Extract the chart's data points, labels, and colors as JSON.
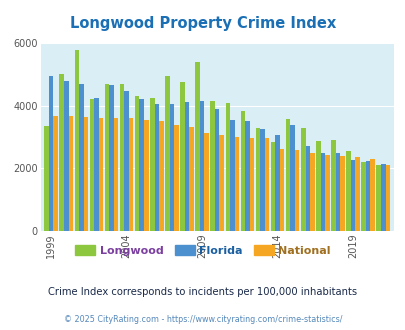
{
  "title": "Longwood Property Crime Index",
  "years": [
    1999,
    2000,
    2001,
    2002,
    2003,
    2004,
    2005,
    2006,
    2007,
    2008,
    2009,
    2010,
    2011,
    2012,
    2013,
    2014,
    2015,
    2016,
    2017,
    2018,
    2019,
    2020,
    2021
  ],
  "longwood": [
    3350,
    5000,
    5780,
    4200,
    4700,
    4700,
    4300,
    4250,
    4950,
    4750,
    5380,
    4150,
    4070,
    3820,
    3280,
    2850,
    3560,
    3270,
    2870,
    2900,
    2550,
    2200,
    2100
  ],
  "florida": [
    4950,
    4800,
    4700,
    4250,
    4650,
    4450,
    4200,
    4050,
    4050,
    4100,
    4150,
    3900,
    3550,
    3500,
    3260,
    3050,
    3380,
    2700,
    2480,
    2480,
    2270,
    2230,
    2150
  ],
  "national": [
    3670,
    3680,
    3640,
    3620,
    3620,
    3590,
    3540,
    3520,
    3390,
    3330,
    3140,
    3060,
    3000,
    2980,
    2960,
    2610,
    2590,
    2490,
    2440,
    2380,
    2360,
    2310,
    2100
  ],
  "longwood_color": "#8dc63f",
  "florida_color": "#4d90d0",
  "national_color": "#f5a623",
  "bg_color": "#daeef5",
  "ylim": [
    0,
    6000
  ],
  "yticks": [
    0,
    2000,
    4000,
    6000
  ],
  "xlabel_ticks": [
    1999,
    2004,
    2009,
    2014,
    2019
  ],
  "legend_labels": [
    "Longwood",
    "Florida",
    "National"
  ],
  "legend_text_colors": [
    "#7b3fa0",
    "#1a5fa0",
    "#a07020"
  ],
  "subtitle": "Crime Index corresponds to incidents per 100,000 inhabitants",
  "footer": "© 2025 CityRating.com - https://www.cityrating.com/crime-statistics/",
  "title_color": "#1a6fb5",
  "subtitle_color": "#1a2a4a",
  "footer_color": "#5588bb"
}
